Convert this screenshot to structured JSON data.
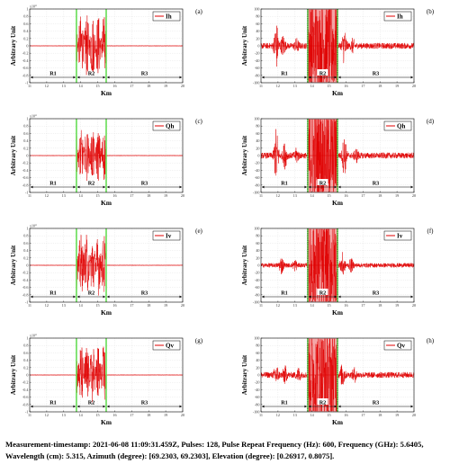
{
  "chart_data": [
    {
      "id": "a",
      "type": "line",
      "label": "(a)",
      "legend": "Ih",
      "xlabel": "Km",
      "ylabel": "Arbitrary Unit",
      "xlim": [
        11,
        20
      ],
      "ylim": [
        -1,
        1
      ],
      "y_exponent": "x10^4",
      "x_ticks": [
        11,
        12,
        13,
        14,
        15,
        16,
        17,
        18,
        19,
        20
      ],
      "x_tick_labels": [
        "11",
        "12",
        "13",
        "14",
        "15",
        "16",
        "17",
        "18",
        "19",
        "20"
      ],
      "y_ticks": [
        -1,
        -0.8,
        -0.6,
        -0.4,
        -0.2,
        0,
        0.2,
        0.4,
        0.6,
        0.8,
        1
      ],
      "y_tick_labels": [
        "-1",
        "-0.8",
        "-0.6",
        "-0.4",
        "-0.2",
        "0",
        "0.2",
        "0.4",
        "0.6",
        "0.8",
        "1"
      ],
      "boundaries": [
        13.75,
        15.5
      ],
      "regions": [
        {
          "label": "R1",
          "from": 11,
          "to": 13.75
        },
        {
          "label": "R2",
          "from": 13.75,
          "to": 15.5
        },
        {
          "label": "R3",
          "from": 15.5,
          "to": 20
        }
      ],
      "signal": {
        "from": 13.75,
        "to": 15.5,
        "peak": 0.85
      }
    },
    {
      "id": "b",
      "type": "line",
      "label": "(b)",
      "legend": "Ih",
      "xlabel": "Km",
      "ylabel": "Arbitrary Unit",
      "xlim": [
        11,
        20
      ],
      "ylim": [
        -100,
        100
      ],
      "x_ticks": [
        11,
        12,
        13,
        14,
        15,
        16,
        17,
        18,
        19,
        20
      ],
      "x_tick_labels": [
        "11",
        "12",
        "13",
        "14",
        "15",
        "16",
        "17",
        "18",
        "19",
        "20"
      ],
      "y_ticks": [
        -100,
        -80,
        -60,
        -40,
        -20,
        0,
        20,
        40,
        60,
        80,
        100
      ],
      "y_tick_labels": [
        "-100",
        "-80",
        "-60",
        "-40",
        "-20",
        "0",
        "20",
        "40",
        "60",
        "80",
        "100"
      ],
      "boundaries": [
        13.75,
        15.5
      ],
      "regions": [
        {
          "label": "R1",
          "from": 11,
          "to": 13.75
        },
        {
          "label": "R2",
          "from": 13.75,
          "to": 15.5
        },
        {
          "label": "R3",
          "from": 15.5,
          "to": 20
        }
      ],
      "noise_amplitude": 8,
      "saturated": [
        13.75,
        15.5
      ],
      "spikes": [
        {
          "x": 11.9,
          "amp": 60
        },
        {
          "x": 12.3,
          "amp": 25
        },
        {
          "x": 13.1,
          "amp": 15
        },
        {
          "x": 15.9,
          "amp": 45
        },
        {
          "x": 16.4,
          "amp": 15
        }
      ]
    },
    {
      "id": "c",
      "type": "line",
      "label": "(c)",
      "legend": "Qh",
      "xlabel": "Km",
      "ylabel": "Arbitrary Unit",
      "xlim": [
        11,
        20
      ],
      "ylim": [
        -1,
        1
      ],
      "y_exponent": "x10^4",
      "x_ticks": [
        11,
        12,
        13,
        14,
        15,
        16,
        17,
        18,
        19,
        20
      ],
      "x_tick_labels": [
        "11",
        "12",
        "13",
        "14",
        "15",
        "16",
        "17",
        "18",
        "19",
        "20"
      ],
      "y_ticks": [
        -1,
        -0.8,
        -0.6,
        -0.4,
        -0.2,
        0,
        0.2,
        0.4,
        0.6,
        0.8,
        1
      ],
      "y_tick_labels": [
        "-1",
        "-0.8",
        "-0.6",
        "-0.4",
        "-0.2",
        "0",
        "0.2",
        "0.4",
        "0.6",
        "0.8",
        "1"
      ],
      "boundaries": [
        13.75,
        15.5
      ],
      "regions": [
        {
          "label": "R1",
          "from": 11,
          "to": 13.75
        },
        {
          "label": "R2",
          "from": 13.75,
          "to": 15.5
        },
        {
          "label": "R3",
          "from": 15.5,
          "to": 20
        }
      ],
      "signal": {
        "from": 13.75,
        "to": 15.5,
        "peak": 0.7
      }
    },
    {
      "id": "d",
      "type": "line",
      "label": "(d)",
      "legend": "Qh",
      "xlabel": "Km",
      "ylabel": "Arbitrary Unit",
      "xlim": [
        11,
        20
      ],
      "ylim": [
        -100,
        100
      ],
      "x_ticks": [
        11,
        12,
        13,
        14,
        15,
        16,
        17,
        18,
        19,
        20
      ],
      "x_tick_labels": [
        "11",
        "12",
        "13",
        "14",
        "15",
        "16",
        "17",
        "18",
        "19",
        "20"
      ],
      "y_ticks": [
        -100,
        -80,
        -60,
        -40,
        -20,
        0,
        20,
        40,
        60,
        80,
        100
      ],
      "y_tick_labels": [
        "-100",
        "-80",
        "-60",
        "-40",
        "-20",
        "0",
        "20",
        "40",
        "60",
        "80",
        "100"
      ],
      "boundaries": [
        13.75,
        15.5
      ],
      "regions": [
        {
          "label": "R1",
          "from": 11,
          "to": 13.75
        },
        {
          "label": "R2",
          "from": 13.75,
          "to": 15.5
        },
        {
          "label": "R3",
          "from": 15.5,
          "to": 20
        }
      ],
      "noise_amplitude": 8,
      "saturated": [
        13.75,
        15.5
      ],
      "spikes": [
        {
          "x": 11.9,
          "amp": 70
        },
        {
          "x": 12.4,
          "amp": 30
        },
        {
          "x": 13.1,
          "amp": 15
        },
        {
          "x": 15.9,
          "amp": 50
        },
        {
          "x": 16.6,
          "amp": 15
        }
      ]
    },
    {
      "id": "e",
      "type": "line",
      "label": "(e)",
      "legend": "Iv",
      "xlabel": "Km",
      "ylabel": "Arbitrary Unit",
      "xlim": [
        11,
        20
      ],
      "ylim": [
        -1,
        1
      ],
      "y_exponent": "x10^4",
      "x_ticks": [
        11,
        12,
        13,
        14,
        15,
        16,
        17,
        18,
        19,
        20
      ],
      "x_tick_labels": [
        "11",
        "12",
        "13",
        "14",
        "15",
        "16",
        "17",
        "18",
        "19",
        "20"
      ],
      "y_ticks": [
        -1,
        -0.8,
        -0.6,
        -0.4,
        -0.2,
        0,
        0.2,
        0.4,
        0.6,
        0.8,
        1
      ],
      "y_tick_labels": [
        "-1",
        "-0.8",
        "-0.6",
        "-0.4",
        "-0.2",
        "0",
        "0.2",
        "0.4",
        "0.6",
        "0.8",
        "1"
      ],
      "boundaries": [
        13.75,
        15.5
      ],
      "regions": [
        {
          "label": "R1",
          "from": 11,
          "to": 13.75
        },
        {
          "label": "R2",
          "from": 13.75,
          "to": 15.5
        },
        {
          "label": "R3",
          "from": 15.5,
          "to": 20
        }
      ],
      "signal": {
        "from": 13.75,
        "to": 15.5,
        "peak": 0.85
      }
    },
    {
      "id": "f",
      "type": "line",
      "label": "(f)",
      "legend": "Iv",
      "xlabel": "Km",
      "ylabel": "Arbitrary Unit",
      "xlim": [
        11,
        20
      ],
      "ylim": [
        -100,
        100
      ],
      "x_ticks": [
        11,
        12,
        13,
        14,
        15,
        16,
        17,
        18,
        19,
        20
      ],
      "x_tick_labels": [
        "11",
        "12",
        "13",
        "14",
        "15",
        "16",
        "17",
        "18",
        "19",
        "20"
      ],
      "y_ticks": [
        -100,
        -80,
        -60,
        -40,
        -20,
        0,
        20,
        40,
        60,
        80,
        100
      ],
      "y_tick_labels": [
        "-100",
        "-80",
        "-60",
        "-40",
        "-20",
        "0",
        "20",
        "40",
        "60",
        "80",
        "100"
      ],
      "boundaries": [
        13.75,
        15.5
      ],
      "regions": [
        {
          "label": "R1",
          "from": 11,
          "to": 13.75
        },
        {
          "label": "R2",
          "from": 13.75,
          "to": 15.5
        },
        {
          "label": "R3",
          "from": 15.5,
          "to": 20
        }
      ],
      "noise_amplitude": 6,
      "saturated": [
        13.75,
        15.5
      ],
      "spikes": [
        {
          "x": 12.2,
          "amp": 20
        },
        {
          "x": 13.0,
          "amp": 12
        },
        {
          "x": 15.8,
          "amp": 30
        },
        {
          "x": 16.3,
          "amp": 15
        }
      ]
    },
    {
      "id": "g",
      "type": "line",
      "label": "(g)",
      "legend": "Qv",
      "xlabel": "Km",
      "ylabel": "Arbitrary Unit",
      "xlim": [
        11,
        20
      ],
      "ylim": [
        -1,
        1
      ],
      "y_exponent": "x10^4",
      "x_ticks": [
        11,
        12,
        13,
        14,
        15,
        16,
        17,
        18,
        19,
        20
      ],
      "x_tick_labels": [
        "11",
        "12",
        "13",
        "14",
        "15",
        "16",
        "17",
        "18",
        "19",
        "20"
      ],
      "y_ticks": [
        -1,
        -0.8,
        -0.6,
        -0.4,
        -0.2,
        0,
        0.2,
        0.4,
        0.6,
        0.8,
        1
      ],
      "y_tick_labels": [
        "-1",
        "-0.8",
        "-0.6",
        "-0.4",
        "-0.2",
        "0",
        "0.2",
        "0.4",
        "0.6",
        "0.8",
        "1"
      ],
      "boundaries": [
        13.75,
        15.5
      ],
      "regions": [
        {
          "label": "R1",
          "from": 11,
          "to": 13.75
        },
        {
          "label": "R2",
          "from": 13.75,
          "to": 15.5
        },
        {
          "label": "R3",
          "from": 15.5,
          "to": 20
        }
      ],
      "signal": {
        "from": 13.75,
        "to": 15.5,
        "peak": 0.85
      }
    },
    {
      "id": "h",
      "type": "line",
      "label": "(h)",
      "legend": "Qv",
      "xlabel": "Km",
      "ylabel": "Arbitrary Unit",
      "xlim": [
        11,
        20
      ],
      "ylim": [
        -100,
        100
      ],
      "x_ticks": [
        11,
        12,
        13,
        14,
        15,
        16,
        17,
        18,
        19,
        20
      ],
      "x_tick_labels": [
        "11",
        "12",
        "13",
        "14",
        "15",
        "16",
        "17",
        "18",
        "19",
        "20"
      ],
      "y_ticks": [
        -100,
        -80,
        -60,
        -40,
        -20,
        0,
        20,
        40,
        60,
        80,
        100
      ],
      "y_tick_labels": [
        "-100",
        "-80",
        "-60",
        "-40",
        "-20",
        "0",
        "20",
        "40",
        "60",
        "80",
        "100"
      ],
      "boundaries": [
        13.75,
        15.5
      ],
      "regions": [
        {
          "label": "R1",
          "from": 11,
          "to": 13.75
        },
        {
          "label": "R2",
          "from": 13.75,
          "to": 15.5
        },
        {
          "label": "R3",
          "from": 15.5,
          "to": 20
        }
      ],
      "noise_amplitude": 8,
      "saturated": [
        13.75,
        15.5
      ],
      "spikes": [
        {
          "x": 11.9,
          "amp": 25
        },
        {
          "x": 12.4,
          "amp": 20
        },
        {
          "x": 13.2,
          "amp": 15
        },
        {
          "x": 15.8,
          "amp": 30
        },
        {
          "x": 16.5,
          "amp": 15
        }
      ]
    }
  ],
  "colors": {
    "signal": "#e00000",
    "boundary": "#66dd55",
    "axes": "#000000",
    "grid": "#dddddd"
  },
  "caption": "Measurement-timestamp: 2021-06-08 11:09:31.459Z, Pulses: 128, Pulse Repeat Frequency (Hz): 600, Frequency (GHz): 5.6405, Wavelength (cm): 5.315, Azimuth (degree): [69.2303, 69.2303], Elevation (degree): [0.26917, 0.8075]."
}
